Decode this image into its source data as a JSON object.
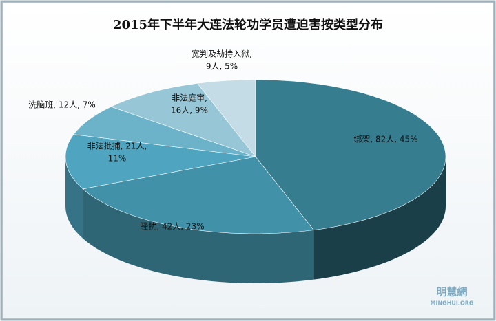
{
  "chart_data": {
    "type": "pie3d",
    "title": "2015年下半年大连法轮功学员遭迫害按类型分布",
    "categories": [
      "绑架",
      "骚扰",
      "非法批捕",
      "洗脑班",
      "非法庭审",
      "宽判及劫持入狱"
    ],
    "values": [
      82,
      42,
      21,
      12,
      16,
      9
    ],
    "value_labels": [
      [
        "绑架, 82人, 45%"
      ],
      [
        "骚扰, 42人, 23%"
      ],
      [
        "非法批捕, 21人,",
        "11%"
      ],
      [
        "洗脑班, 12人, 7%"
      ],
      [
        "非法庭审,",
        "16人, 9%"
      ],
      [
        "宽判及劫持入狱,",
        "9人, 5%"
      ]
    ],
    "colors": [
      "#367d90",
      "#4191a8",
      "#4fa5bf",
      "#6cb3ca",
      "#97c6d6",
      "#c3dce5"
    ],
    "watermark": [
      "明慧網",
      "MINGHUI.ORG"
    ]
  }
}
